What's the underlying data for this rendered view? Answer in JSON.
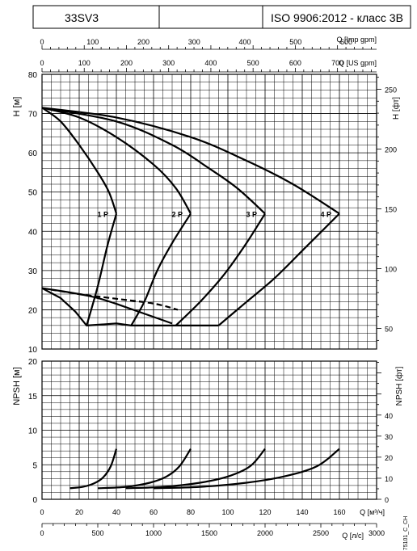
{
  "header": {
    "model": "33SV3",
    "standard": "ISO 9906:2012 - класс 3B"
  },
  "axes": {
    "imp_label": "Q [Imp gpm]",
    "imp_ticks": [
      "0",
      "100",
      "200",
      "300",
      "400",
      "500",
      "600"
    ],
    "us_label": "Q [US gpm]",
    "us_ticks": [
      "0",
      "100",
      "200",
      "300",
      "400",
      "500",
      "600",
      "700"
    ],
    "h_m_label": "H [м]",
    "h_m_ticks": [
      "10",
      "20",
      "30",
      "40",
      "50",
      "60",
      "70",
      "80"
    ],
    "h_ft_label": "H [фт]",
    "h_ft_ticks": [
      "50",
      "100",
      "150",
      "200",
      "250"
    ],
    "npsh_m_label": "NPSH [м]",
    "npsh_m_ticks": [
      "0",
      "5",
      "10",
      "15",
      "20"
    ],
    "npsh_ft_label": "NPSH [фт]",
    "npsh_ft_ticks": [
      "0",
      "10",
      "20",
      "30",
      "40"
    ],
    "q_m3h_label": "Q [м³/ч]",
    "q_m3h_ticks": [
      "0",
      "20",
      "40",
      "60",
      "80",
      "100",
      "120",
      "140",
      "160"
    ],
    "q_ls_label": "Q [л/с]",
    "q_ls_ticks": [
      "0",
      "500",
      "1000",
      "1500",
      "2000",
      "2500",
      "3000"
    ]
  },
  "code": "75101_C_CH",
  "chart_data": [
    {
      "type": "line",
      "panel": "head",
      "x_unit": "Q [м³/ч]",
      "y_unit": "H [м]",
      "xlim": [
        0,
        180
      ],
      "ylim": [
        10,
        80
      ],
      "grid": true,
      "series": [
        {
          "name": "1 P",
          "curve": "H",
          "points": [
            [
              0,
              71.5
            ],
            [
              10,
              68
            ],
            [
              20,
              62
            ],
            [
              30,
              55
            ],
            [
              36,
              50
            ],
            [
              40,
              44.5
            ]
          ]
        },
        {
          "name": "1 P",
          "curve": "min",
          "points": [
            [
              24,
              16
            ],
            [
              30,
              26
            ],
            [
              35,
              36
            ],
            [
              40,
              44.5
            ]
          ]
        },
        {
          "name": "2 P",
          "curve": "H",
          "points": [
            [
              0,
              71.5
            ],
            [
              20,
              69
            ],
            [
              40,
              64
            ],
            [
              60,
              57
            ],
            [
              72,
              51
            ],
            [
              80,
              44.5
            ]
          ]
        },
        {
          "name": "2 P",
          "curve": "min",
          "points": [
            [
              48,
              16
            ],
            [
              55,
              22
            ],
            [
              62,
              30
            ],
            [
              70,
              37
            ],
            [
              80,
              44.5
            ]
          ]
        },
        {
          "name": "3 P",
          "curve": "H",
          "points": [
            [
              0,
              71.5
            ],
            [
              40,
              68
            ],
            [
              70,
              62
            ],
            [
              90,
              56
            ],
            [
              105,
              51
            ],
            [
              120,
              44.5
            ]
          ]
        },
        {
          "name": "3 P",
          "curve": "min",
          "points": [
            [
              72,
              16
            ],
            [
              85,
              22
            ],
            [
              98,
              29
            ],
            [
              110,
              37
            ],
            [
              120,
              44.5
            ]
          ]
        },
        {
          "name": "4 P",
          "curve": "H",
          "points": [
            [
              0,
              71.5
            ],
            [
              40,
              69
            ],
            [
              80,
              64
            ],
            [
              110,
              58
            ],
            [
              135,
              52
            ],
            [
              160,
              44.5
            ]
          ]
        },
        {
          "name": "4 P",
          "curve": "min",
          "points": [
            [
              95,
              16
            ],
            [
              110,
              22
            ],
            [
              125,
              28
            ],
            [
              142,
              36
            ],
            [
              160,
              44.5
            ]
          ]
        },
        {
          "name": "",
          "curve": "solid-limit",
          "points": [
            [
              0,
              25.5
            ],
            [
              10,
              24.8
            ],
            [
              20,
              24
            ],
            [
              30,
              23
            ],
            [
              40,
              21.5
            ],
            [
              70,
              16.5
            ]
          ]
        },
        {
          "name": "",
          "curve": "dashed",
          "points": [
            [
              0,
              25.5
            ],
            [
              20,
              24
            ],
            [
              40,
              22.8
            ],
            [
              60,
              21.6
            ],
            [
              73,
              20
            ]
          ]
        },
        {
          "name": "",
          "curve": "lower",
          "points": [
            [
              0,
              25.5
            ],
            [
              10,
              23
            ],
            [
              18,
              19.5
            ],
            [
              24,
              16
            ],
            [
              40,
              16.5
            ],
            [
              48,
              16
            ],
            [
              72,
              16
            ],
            [
              95,
              16
            ]
          ]
        }
      ]
    },
    {
      "type": "line",
      "panel": "npsh",
      "x_unit": "Q [м³/ч]",
      "y_unit": "NPSH [м]",
      "xlim": [
        0,
        180
      ],
      "ylim": [
        0,
        20
      ],
      "grid": true,
      "series": [
        {
          "name": "1 P",
          "points": [
            [
              15,
              1.6
            ],
            [
              22,
              1.8
            ],
            [
              28,
              2.3
            ],
            [
              33,
              3.2
            ],
            [
              37,
              4.8
            ],
            [
              40,
              7.3
            ]
          ]
        },
        {
          "name": "2 P",
          "points": [
            [
              30,
              1.6
            ],
            [
              45,
              1.8
            ],
            [
              58,
              2.4
            ],
            [
              67,
              3.3
            ],
            [
              74,
              4.8
            ],
            [
              80,
              7.3
            ]
          ]
        },
        {
          "name": "3 P",
          "points": [
            [
              45,
              1.6
            ],
            [
              65,
              1.8
            ],
            [
              85,
              2.4
            ],
            [
              100,
              3.3
            ],
            [
              112,
              4.8
            ],
            [
              120,
              7.3
            ]
          ]
        },
        {
          "name": "4 P",
          "points": [
            [
              60,
              1.6
            ],
            [
              85,
              1.8
            ],
            [
              110,
              2.4
            ],
            [
              130,
              3.3
            ],
            [
              148,
              4.8
            ],
            [
              160,
              7.3
            ]
          ]
        }
      ]
    }
  ]
}
